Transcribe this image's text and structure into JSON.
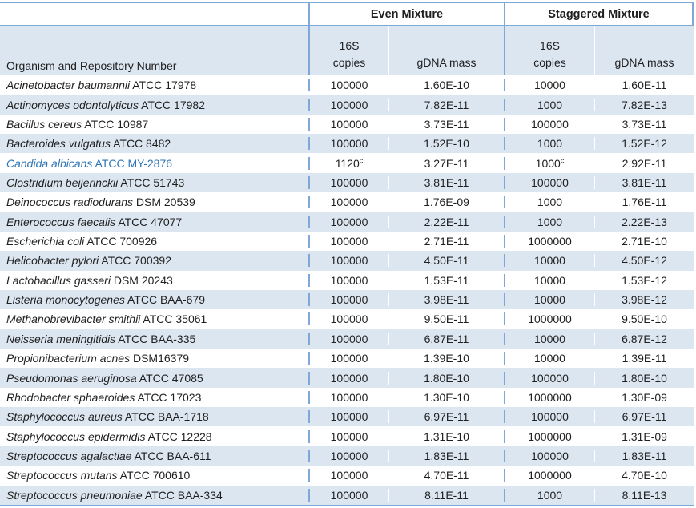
{
  "table": {
    "organism_header": "Organism and Repository Number",
    "groups": [
      {
        "label": "Even Mixture"
      },
      {
        "label": "Staggered Mixture"
      }
    ],
    "subheaders": {
      "copies_line1": "16S",
      "copies_line2": "copies",
      "mass": "gDNA mass"
    },
    "colors": {
      "stripe": "#dce6f1",
      "border": "#7fa7d7",
      "highlight_text": "#2e74b5"
    },
    "footnote_marker": "c"
  },
  "rows": [
    {
      "organism_italic": "Acinetobacter baumannii",
      "organism_roman": "ATCC 17978",
      "even_copies": "100000",
      "even_copies_sup": "",
      "even_mass": "1.60E-10",
      "stag_copies": "10000",
      "stag_copies_sup": "",
      "stag_mass": "1.60E-11",
      "highlight": false
    },
    {
      "organism_italic": "Actinomyces odontolyticus",
      "organism_roman": "ATCC 17982",
      "even_copies": "100000",
      "even_copies_sup": "",
      "even_mass": "7.82E-11",
      "stag_copies": "1000",
      "stag_copies_sup": "",
      "stag_mass": "7.82E-13",
      "highlight": false
    },
    {
      "organism_italic": "Bacillus cereus",
      "organism_roman": "ATCC 10987",
      "even_copies": "100000",
      "even_copies_sup": "",
      "even_mass": "3.73E-11",
      "stag_copies": "100000",
      "stag_copies_sup": "",
      "stag_mass": "3.73E-11",
      "highlight": false
    },
    {
      "organism_italic": "Bacteroides vulgatus",
      "organism_roman": "ATCC 8482",
      "even_copies": "100000",
      "even_copies_sup": "",
      "even_mass": "1.52E-10",
      "stag_copies": "1000",
      "stag_copies_sup": "",
      "stag_mass": "1.52E-12",
      "highlight": false
    },
    {
      "organism_italic": "Candida albicans",
      "organism_roman": "ATCC MY-2876",
      "even_copies": "1120",
      "even_copies_sup": "c",
      "even_mass": "3.27E-11",
      "stag_copies": "1000",
      "stag_copies_sup": "c",
      "stag_mass": "2.92E-11",
      "highlight": true
    },
    {
      "organism_italic": "Clostridium beijerinckii",
      "organism_roman": "ATCC 51743",
      "even_copies": "100000",
      "even_copies_sup": "",
      "even_mass": "3.81E-11",
      "stag_copies": "100000",
      "stag_copies_sup": "",
      "stag_mass": "3.81E-11",
      "highlight": false
    },
    {
      "organism_italic": "Deinococcus radiodurans",
      "organism_roman": "DSM 20539",
      "even_copies": "100000",
      "even_copies_sup": "",
      "even_mass": "1.76E-09",
      "stag_copies": "1000",
      "stag_copies_sup": "",
      "stag_mass": "1.76E-11",
      "highlight": false
    },
    {
      "organism_italic": "Enterococcus faecalis",
      "organism_roman": "ATCC 47077",
      "even_copies": "100000",
      "even_copies_sup": "",
      "even_mass": "2.22E-11",
      "stag_copies": "1000",
      "stag_copies_sup": "",
      "stag_mass": "2.22E-13",
      "highlight": false
    },
    {
      "organism_italic": "Escherichia coli",
      "organism_roman": "ATCC 700926",
      "even_copies": "100000",
      "even_copies_sup": "",
      "even_mass": "2.71E-11",
      "stag_copies": "1000000",
      "stag_copies_sup": "",
      "stag_mass": "2.71E-10",
      "highlight": false
    },
    {
      "organism_italic": "Helicobacter pylori",
      "organism_roman": "ATCC 700392",
      "even_copies": "100000",
      "even_copies_sup": "",
      "even_mass": "4.50E-11",
      "stag_copies": "10000",
      "stag_copies_sup": "",
      "stag_mass": "4.50E-12",
      "highlight": false
    },
    {
      "organism_italic": "Lactobacillus gasseri",
      "organism_roman": "DSM 20243",
      "even_copies": "100000",
      "even_copies_sup": "",
      "even_mass": "1.53E-11",
      "stag_copies": "10000",
      "stag_copies_sup": "",
      "stag_mass": "1.53E-12",
      "highlight": false
    },
    {
      "organism_italic": "Listeria monocytogenes",
      "organism_roman": "ATCC BAA-679",
      "even_copies": "100000",
      "even_copies_sup": "",
      "even_mass": "3.98E-11",
      "stag_copies": "10000",
      "stag_copies_sup": "",
      "stag_mass": "3.98E-12",
      "highlight": false
    },
    {
      "organism_italic": "Methanobrevibacter smithii",
      "organism_roman": "ATCC 35061",
      "even_copies": "100000",
      "even_copies_sup": "",
      "even_mass": "9.50E-11",
      "stag_copies": "1000000",
      "stag_copies_sup": "",
      "stag_mass": "9.50E-10",
      "highlight": false
    },
    {
      "organism_italic": "Neisseria meningitidis",
      "organism_roman": "ATCC BAA-335",
      "even_copies": "100000",
      "even_copies_sup": "",
      "even_mass": "6.87E-11",
      "stag_copies": "10000",
      "stag_copies_sup": "",
      "stag_mass": "6.87E-12",
      "highlight": false
    },
    {
      "organism_italic": "Propionibacterium acnes",
      "organism_roman": "DSM16379",
      "even_copies": "100000",
      "even_copies_sup": "",
      "even_mass": "1.39E-10",
      "stag_copies": "10000",
      "stag_copies_sup": "",
      "stag_mass": "1.39E-11",
      "highlight": false
    },
    {
      "organism_italic": "Pseudomonas aeruginosa",
      "organism_roman": "ATCC 47085",
      "even_copies": "100000",
      "even_copies_sup": "",
      "even_mass": "1.80E-10",
      "stag_copies": "100000",
      "stag_copies_sup": "",
      "stag_mass": "1.80E-10",
      "highlight": false
    },
    {
      "organism_italic": "Rhodobacter sphaeroides",
      "organism_roman": "ATCC 17023",
      "even_copies": "100000",
      "even_copies_sup": "",
      "even_mass": "1.30E-10",
      "stag_copies": "1000000",
      "stag_copies_sup": "",
      "stag_mass": "1.30E-09",
      "highlight": false
    },
    {
      "organism_italic": "Staphylococcus aureus",
      "organism_roman": "ATCC BAA-1718",
      "even_copies": "100000",
      "even_copies_sup": "",
      "even_mass": "6.97E-11",
      "stag_copies": "100000",
      "stag_copies_sup": "",
      "stag_mass": "6.97E-11",
      "highlight": false
    },
    {
      "organism_italic": "Staphylococcus epidermidis",
      "organism_roman": "ATCC 12228",
      "even_copies": "100000",
      "even_copies_sup": "",
      "even_mass": "1.31E-10",
      "stag_copies": "1000000",
      "stag_copies_sup": "",
      "stag_mass": "1.31E-09",
      "highlight": false
    },
    {
      "organism_italic": "Streptococcus agalactiae",
      "organism_roman": "ATCC BAA-611",
      "even_copies": "100000",
      "even_copies_sup": "",
      "even_mass": "1.83E-11",
      "stag_copies": "100000",
      "stag_copies_sup": "",
      "stag_mass": "1.83E-11",
      "highlight": false
    },
    {
      "organism_italic": "Streptococcus mutans",
      "organism_roman": "ATCC 700610",
      "even_copies": "100000",
      "even_copies_sup": "",
      "even_mass": "4.70E-11",
      "stag_copies": "1000000",
      "stag_copies_sup": "",
      "stag_mass": "4.70E-10",
      "highlight": false
    },
    {
      "organism_italic": "Streptococcus pneumoniae",
      "organism_roman": "ATCC BAA-334",
      "even_copies": "100000",
      "even_copies_sup": "",
      "even_mass": "8.11E-11",
      "stag_copies": "1000",
      "stag_copies_sup": "",
      "stag_mass": "8.11E-13",
      "highlight": false
    }
  ]
}
